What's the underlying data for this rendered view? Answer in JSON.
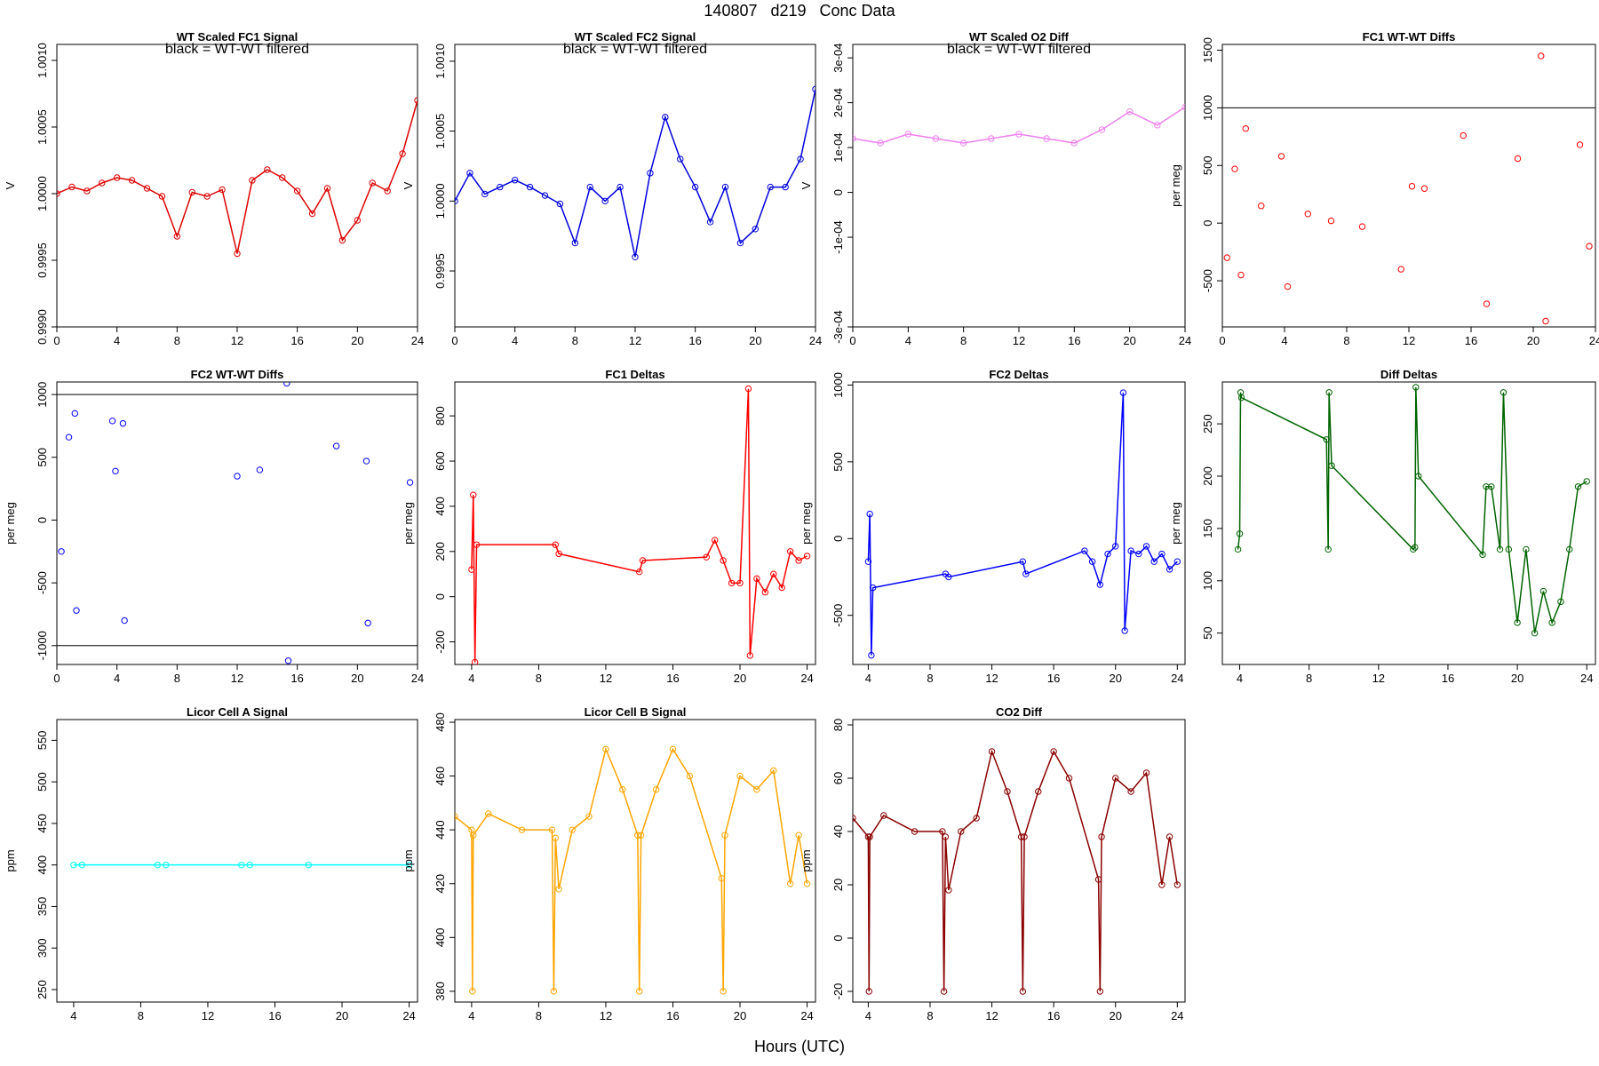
{
  "page": {
    "title": "140807   d219   Conc Data",
    "x_axis_label": "Hours (UTC)"
  },
  "chart_data": [
    {
      "id": "fc1_signal",
      "type": "line",
      "title": "WT Scaled FC1 Signal",
      "note": "black = WT-WT filtered",
      "ylabel": "V",
      "series": [
        {
          "name": "FC1 signal",
          "color": "#dd0000",
          "points": "dense oscillating line with markers"
        }
      ],
      "xlim": [
        0,
        24
      ],
      "ylim": [
        0.999,
        1.00112
      ],
      "xticks": [
        0,
        4,
        8,
        12,
        16,
        20,
        24
      ],
      "xtick_labels": [
        "0",
        "4",
        "8",
        "12",
        "16",
        "20",
        "24"
      ],
      "yticks": [
        0.999,
        0.9995,
        1.0,
        1.0005,
        1.001
      ],
      "ytick_labels": [
        "0.9990",
        "0.9995",
        "1.0000",
        "1.0005",
        "1.0010"
      ],
      "hlines": [],
      "x": [
        0,
        1,
        2,
        3,
        4,
        5,
        6,
        7,
        8,
        9,
        10,
        11,
        12,
        13,
        14,
        15,
        16,
        17,
        18,
        19,
        20,
        21,
        22,
        23,
        24
      ],
      "y": [
        1.0,
        1.00005,
        1.00002,
        1.00008,
        1.00012,
        1.0001,
        1.00004,
        0.99998,
        0.99968,
        1.00001,
        0.99998,
        1.00003,
        0.99955,
        1.0001,
        1.00018,
        1.00012,
        1.00002,
        0.99985,
        1.00004,
        0.99965,
        0.9998,
        1.00008,
        1.00002,
        1.0003,
        1.0007
      ]
    },
    {
      "id": "fc2_signal",
      "type": "line",
      "title": "WT Scaled FC2 Signal",
      "note": "black = WT-WT filtered",
      "ylabel": "V",
      "series": [
        {
          "name": "FC2 signal",
          "color": "#0000dd",
          "points": "dense oscillating line with markers"
        }
      ],
      "xlim": [
        0,
        24
      ],
      "ylim": [
        0.9991,
        1.00112
      ],
      "xticks": [
        0,
        4,
        8,
        12,
        16,
        20,
        24
      ],
      "xtick_labels": [
        "0",
        "4",
        "8",
        "12",
        "16",
        "20",
        "24"
      ],
      "yticks": [
        0.9995,
        1.0,
        1.0005,
        1.001
      ],
      "ytick_labels": [
        "0.9995",
        "1.0000",
        "1.0005",
        "1.0010"
      ],
      "hlines": [],
      "x": [
        0,
        1,
        2,
        3,
        4,
        5,
        6,
        7,
        8,
        9,
        10,
        11,
        12,
        13,
        14,
        15,
        16,
        17,
        18,
        19,
        20,
        21,
        22,
        23,
        24
      ],
      "y": [
        1.0,
        1.0002,
        1.00005,
        1.0001,
        1.00015,
        1.0001,
        1.00004,
        0.99998,
        0.9997,
        1.0001,
        1.0,
        1.0001,
        0.9996,
        1.0002,
        1.0006,
        1.0003,
        1.0001,
        0.99985,
        1.0001,
        0.9997,
        0.9998,
        1.0001,
        1.0001,
        1.0003,
        1.0008
      ]
    },
    {
      "id": "o2_diff",
      "type": "line",
      "title": "WT Scaled O2 Diff",
      "note": "black = WT-WT filtered",
      "ylabel": "V",
      "series": [
        {
          "name": "O2 diff",
          "color": "#ee82ee",
          "points": "dense band with purple markers"
        }
      ],
      "xlim": [
        0,
        24
      ],
      "ylim": [
        -0.0003,
        0.00033
      ],
      "xticks": [
        0,
        4,
        8,
        12,
        16,
        20,
        24
      ],
      "xtick_labels": [
        "0",
        "4",
        "8",
        "12",
        "16",
        "20",
        "24"
      ],
      "yticks": [
        -0.0003,
        -0.0001,
        0.0,
        0.0001,
        0.0002,
        0.0003
      ],
      "ytick_labels": [
        "-3e-04",
        "-1e-04",
        "0",
        "1e-04",
        "2e-04",
        "3e-04"
      ],
      "hlines": [],
      "x": [
        0,
        2,
        4,
        6,
        8,
        10,
        12,
        14,
        16,
        18,
        20,
        22,
        24
      ],
      "y": [
        0.00012,
        0.00011,
        0.00013,
        0.00012,
        0.00011,
        0.00012,
        0.00013,
        0.00012,
        0.00011,
        0.00014,
        0.00018,
        0.00015,
        0.00019
      ]
    },
    {
      "id": "fc1_wtwt",
      "type": "scatter",
      "title": "FC1 WT-WT Diffs",
      "note": "",
      "ylabel": "per meg",
      "series": [
        {
          "name": "FC1 WT-WT",
          "color": "#ff0000",
          "points": "open circles"
        }
      ],
      "xlim": [
        0,
        24
      ],
      "ylim": [
        -900,
        1550
      ],
      "xticks": [
        0,
        4,
        8,
        12,
        16,
        20,
        24
      ],
      "xtick_labels": [
        "0",
        "4",
        "8",
        "12",
        "16",
        "20",
        "24"
      ],
      "yticks": [
        -500,
        0,
        500,
        1000,
        1500
      ],
      "ytick_labels": [
        "-500",
        "0",
        "500",
        "1000",
        "1500"
      ],
      "hlines": [
        1000
      ],
      "x": [
        0.3,
        0.8,
        1.2,
        1.5,
        2.5,
        3.8,
        4.2,
        5.5,
        7,
        9,
        11.5,
        12.2,
        13,
        15.5,
        17,
        19,
        20.5,
        20.8,
        23,
        23.6
      ],
      "y": [
        -300,
        470,
        -450,
        820,
        150,
        580,
        -550,
        80,
        20,
        -30,
        -400,
        320,
        300,
        760,
        -700,
        560,
        1450,
        -850,
        680,
        -200
      ]
    },
    {
      "id": "fc2_wtwt",
      "type": "scatter",
      "title": "FC2 WT-WT Diffs",
      "note": "",
      "ylabel": "per meg",
      "series": [
        {
          "name": "FC2 WT-WT",
          "color": "#0000ff",
          "points": "open circles"
        }
      ],
      "xlim": [
        0,
        24
      ],
      "ylim": [
        -1150,
        1100
      ],
      "xticks": [
        0,
        4,
        8,
        12,
        16,
        20,
        24
      ],
      "xtick_labels": [
        "0",
        "4",
        "8",
        "12",
        "16",
        "20",
        "24"
      ],
      "yticks": [
        -1000,
        -500,
        0,
        500,
        1000
      ],
      "ytick_labels": [
        "-1000",
        "-500",
        "0",
        "500",
        "1000"
      ],
      "hlines": [
        1000,
        -1000
      ],
      "x": [
        0.3,
        0.8,
        1.2,
        1.3,
        3.7,
        3.9,
        4.4,
        4.5,
        12,
        13.5,
        15.3,
        15.4,
        18.6,
        20.6,
        20.7,
        23.5
      ],
      "y": [
        -250,
        660,
        850,
        -720,
        790,
        390,
        770,
        -800,
        350,
        400,
        1090,
        -1120,
        590,
        470,
        -820,
        300
      ]
    },
    {
      "id": "fc1_deltas",
      "type": "line",
      "title": "FC1 Deltas",
      "note": "",
      "ylabel": "per meg",
      "series": [
        {
          "name": "FC1 deltas",
          "color": "#ff0000",
          "points": "line with circles"
        }
      ],
      "xlim": [
        3,
        24.5
      ],
      "ylim": [
        -300,
        950
      ],
      "xticks": [
        4,
        8,
        12,
        16,
        20,
        24
      ],
      "xtick_labels": [
        "4",
        "8",
        "12",
        "16",
        "20",
        "24"
      ],
      "yticks": [
        -200,
        0,
        200,
        400,
        600,
        800
      ],
      "ytick_labels": [
        "-200",
        "0",
        "200",
        "400",
        "600",
        "800"
      ],
      "hlines": [],
      "x": [
        4,
        4.1,
        4.2,
        4.3,
        9,
        9.2,
        14,
        14.2,
        18,
        18.5,
        19,
        19.5,
        20,
        20.5,
        20.6,
        21,
        21.5,
        22,
        22.5,
        23,
        23.5,
        24
      ],
      "y": [
        120,
        450,
        -290,
        230,
        230,
        190,
        110,
        160,
        175,
        250,
        160,
        60,
        60,
        920,
        -260,
        80,
        20,
        100,
        40,
        200,
        160,
        180
      ]
    },
    {
      "id": "fc2_deltas",
      "type": "line",
      "title": "FC2 Deltas",
      "note": "",
      "ylabel": "per meg",
      "series": [
        {
          "name": "FC2 deltas",
          "color": "#0000ff",
          "points": "line with circles"
        }
      ],
      "xlim": [
        3,
        24.5
      ],
      "ylim": [
        -820,
        1020
      ],
      "xticks": [
        4,
        8,
        12,
        16,
        20,
        24
      ],
      "xtick_labels": [
        "4",
        "8",
        "12",
        "16",
        "20",
        "24"
      ],
      "yticks": [
        -500,
        0,
        500,
        1000
      ],
      "ytick_labels": [
        "-500",
        "0",
        "500",
        "1000"
      ],
      "hlines": [],
      "x": [
        4,
        4.1,
        4.2,
        4.3,
        9,
        9.2,
        14,
        14.2,
        18,
        18.5,
        19,
        19.5,
        20,
        20.5,
        20.6,
        21,
        21.5,
        22,
        22.5,
        23,
        23.5,
        24
      ],
      "y": [
        -150,
        160,
        -760,
        -320,
        -230,
        -250,
        -150,
        -230,
        -80,
        -150,
        -300,
        -100,
        -50,
        950,
        -600,
        -80,
        -100,
        -50,
        -150,
        -100,
        -200,
        -150
      ]
    },
    {
      "id": "diff_deltas",
      "type": "line",
      "title": "Diff Deltas",
      "note": "",
      "ylabel": "per meg",
      "series": [
        {
          "name": "Diff deltas",
          "color": "#006400",
          "points": "line with circles"
        }
      ],
      "xlim": [
        3,
        24.5
      ],
      "ylim": [
        20,
        290
      ],
      "xticks": [
        4,
        8,
        12,
        16,
        20,
        24
      ],
      "xtick_labels": [
        "4",
        "8",
        "12",
        "16",
        "20",
        "24"
      ],
      "yticks": [
        50,
        100,
        150,
        200,
        250
      ],
      "ytick_labels": [
        "50",
        "100",
        "150",
        "200",
        "250"
      ],
      "hlines": [],
      "x": [
        3.9,
        4,
        4.05,
        4.1,
        9,
        9.1,
        9.15,
        9.3,
        14,
        14.1,
        14.15,
        14.3,
        18,
        18.2,
        18.5,
        19,
        19.2,
        19.5,
        20,
        20.5,
        21,
        21.5,
        22,
        22.5,
        23,
        23.5,
        24
      ],
      "y": [
        130,
        145,
        280,
        275,
        235,
        130,
        280,
        210,
        130,
        132,
        285,
        200,
        125,
        190,
        190,
        130,
        280,
        130,
        60,
        130,
        50,
        90,
        60,
        80,
        130,
        190,
        195
      ]
    },
    {
      "id": "licor_a",
      "type": "line",
      "title": "Licor Cell A Signal",
      "note": "",
      "ylabel": "ppm",
      "series": [
        {
          "name": "Cell A",
          "color": "#00ffff",
          "points": "flat line"
        }
      ],
      "xlim": [
        3,
        24.5
      ],
      "ylim": [
        235,
        575
      ],
      "xticks": [
        4,
        8,
        12,
        16,
        20,
        24
      ],
      "xtick_labels": [
        "4",
        "8",
        "12",
        "16",
        "20",
        "24"
      ],
      "yticks": [
        250,
        300,
        350,
        400,
        450,
        500,
        550
      ],
      "ytick_labels": [
        "250",
        "300",
        "350",
        "400",
        "450",
        "500",
        "550"
      ],
      "hlines": [],
      "x": [
        4,
        4.5,
        9,
        9.5,
        14,
        14.5,
        18,
        24
      ],
      "y": [
        400,
        400,
        400,
        400,
        400,
        400,
        400,
        400
      ]
    },
    {
      "id": "licor_b",
      "type": "line",
      "title": "Licor Cell B Signal",
      "note": "",
      "ylabel": "ppm",
      "series": [
        {
          "name": "Cell B",
          "color": "#ffa500",
          "points": "line with circles"
        }
      ],
      "xlim": [
        3,
        24.5
      ],
      "ylim": [
        376,
        481
      ],
      "xticks": [
        4,
        8,
        12,
        16,
        20,
        24
      ],
      "xtick_labels": [
        "4",
        "8",
        "12",
        "16",
        "20",
        "24"
      ],
      "yticks": [
        380,
        400,
        420,
        440,
        460,
        480
      ],
      "ytick_labels": [
        "380",
        "400",
        "420",
        "440",
        "460",
        "480"
      ],
      "hlines": [],
      "x": [
        3,
        4,
        4.05,
        4.1,
        5,
        7,
        8.8,
        8.9,
        9.0,
        9.2,
        10,
        11,
        12,
        13,
        13.9,
        14.0,
        14.1,
        15,
        16,
        17,
        18.9,
        19,
        19.1,
        20,
        21,
        22,
        23,
        23.5,
        24
      ],
      "y": [
        445,
        440,
        380,
        438,
        446,
        440,
        440,
        380,
        437,
        418,
        440,
        445,
        470,
        455,
        438,
        380,
        438,
        455,
        470,
        460,
        422,
        380,
        438,
        460,
        455,
        462,
        420,
        438,
        420
      ]
    },
    {
      "id": "co2_diff",
      "type": "line",
      "title": "CO2 Diff",
      "note": "",
      "ylabel": "ppm",
      "series": [
        {
          "name": "CO2 diff",
          "color": "#8b0000",
          "points": "line with circles"
        }
      ],
      "xlim": [
        3,
        24.5
      ],
      "ylim": [
        -24,
        82
      ],
      "xticks": [
        4,
        8,
        12,
        16,
        20,
        24
      ],
      "xtick_labels": [
        "4",
        "8",
        "12",
        "16",
        "20",
        "24"
      ],
      "yticks": [
        -20,
        0,
        20,
        40,
        60,
        80
      ],
      "ytick_labels": [
        "-20",
        "0",
        "20",
        "40",
        "60",
        "80"
      ],
      "hlines": [],
      "x": [
        3,
        4,
        4.05,
        4.1,
        5,
        7,
        8.8,
        8.9,
        9.0,
        9.2,
        10,
        11,
        12,
        13,
        13.9,
        14.0,
        14.1,
        15,
        16,
        17,
        18.9,
        19,
        19.1,
        20,
        21,
        22,
        23,
        23.5,
        24
      ],
      "y": [
        45,
        38,
        -20,
        38,
        46,
        40,
        40,
        -20,
        38,
        18,
        40,
        45,
        70,
        55,
        38,
        -20,
        38,
        55,
        70,
        60,
        22,
        -20,
        38,
        60,
        55,
        62,
        20,
        38,
        20
      ]
    }
  ]
}
